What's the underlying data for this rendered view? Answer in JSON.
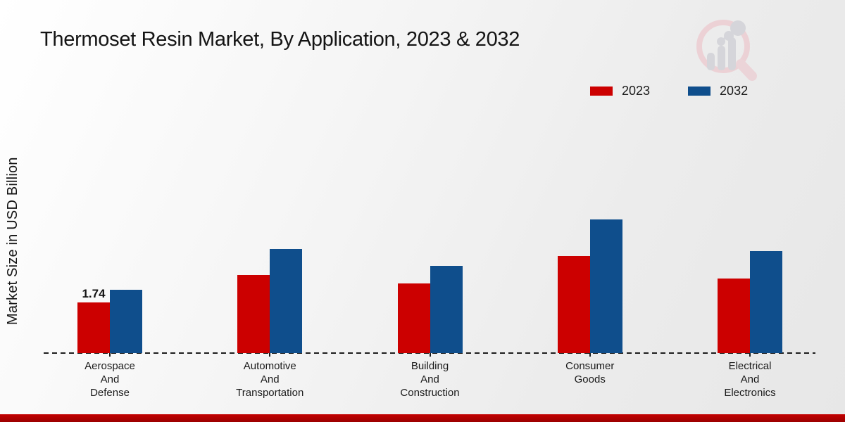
{
  "page": {
    "title": "Thermoset Resin Market, By Application, 2023 & 2032"
  },
  "y_axis": {
    "label": "Market Size in USD Billion"
  },
  "legend": {
    "items": [
      {
        "label": "2023",
        "color": "#cc0000"
      },
      {
        "label": "2032",
        "color": "#0f4e8c"
      }
    ]
  },
  "watermark": {
    "name": "market-research-logo",
    "ring_color": "#eccdd2",
    "bar_color": "#cfcfd4"
  },
  "footer": {
    "color": "#b00000"
  },
  "chart_data": {
    "type": "bar",
    "title": "Thermoset Resin Market, By Application, 2023 & 2032",
    "xlabel": "",
    "ylabel": "Market Size in USD Billion",
    "ylim": [
      0,
      5
    ],
    "grid": false,
    "baseline_style": "dashed",
    "legend_position": "top-right",
    "categories": [
      "Aerospace And Defense",
      "Automotive And Transportation",
      "Building And Construction",
      "Consumer Goods",
      "Electrical And Electronics"
    ],
    "category_lines": [
      [
        "Aerospace",
        "And",
        "Defense"
      ],
      [
        "Automotive",
        "And",
        "Transportation"
      ],
      [
        "Building",
        "And",
        "Construction"
      ],
      [
        "Consumer",
        "Goods"
      ],
      [
        "Electrical",
        "And",
        "Electronics"
      ]
    ],
    "series": [
      {
        "name": "2023",
        "color": "#cc0000",
        "values": [
          1.74,
          2.68,
          2.39,
          3.33,
          2.56
        ]
      },
      {
        "name": "2032",
        "color": "#0f4e8c",
        "values": [
          2.17,
          3.58,
          3.0,
          4.59,
          3.5
        ]
      }
    ],
    "annotations": [
      {
        "series_index": 0,
        "category_index": 0,
        "text": "1.74"
      }
    ]
  }
}
